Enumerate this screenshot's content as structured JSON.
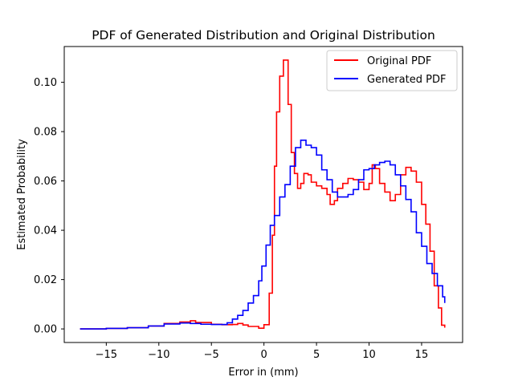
{
  "chart_data": {
    "type": "line",
    "title": "PDF of Generated Distribution and Original Distribution",
    "xlabel": "Error in (mm)",
    "ylabel": "Estimated Probability",
    "xlim": [
      -19.0,
      18.9
    ],
    "ylim": [
      -0.0055,
      0.1145
    ],
    "xticks": [
      -15,
      -10,
      -5,
      0,
      5,
      10,
      15
    ],
    "xtick_labels": [
      "−15",
      "−10",
      "−5",
      "0",
      "5",
      "10",
      "15"
    ],
    "yticks": [
      0.0,
      0.02,
      0.04,
      0.06,
      0.08,
      0.1
    ],
    "ytick_labels": [
      "0.00",
      "0.02",
      "0.04",
      "0.06",
      "0.08",
      "0.10"
    ],
    "grid": false,
    "legend_position": "top-right",
    "drawstyle": "steps",
    "series": [
      {
        "name": "Original PDF",
        "color": "#ff0000",
        "points": [
          [
            -17.5,
            0.0
          ],
          [
            -15.0,
            0.0002
          ],
          [
            -13.0,
            0.0005
          ],
          [
            -11.0,
            0.0012
          ],
          [
            -9.5,
            0.0022
          ],
          [
            -8.0,
            0.0028
          ],
          [
            -7.0,
            0.0033
          ],
          [
            -6.5,
            0.0026
          ],
          [
            -5.0,
            0.0019
          ],
          [
            -4.0,
            0.0017
          ],
          [
            -3.0,
            0.0018
          ],
          [
            -2.5,
            0.0022
          ],
          [
            -2.0,
            0.0016
          ],
          [
            -1.5,
            0.001
          ],
          [
            -0.5,
            0.0003
          ],
          [
            0.0,
            0.0017
          ],
          [
            0.5,
            0.0145
          ],
          [
            0.8,
            0.038
          ],
          [
            1.0,
            0.066
          ],
          [
            1.2,
            0.088
          ],
          [
            1.5,
            0.1025
          ],
          [
            1.85,
            0.109
          ],
          [
            2.3,
            0.091
          ],
          [
            2.6,
            0.0715
          ],
          [
            2.9,
            0.063
          ],
          [
            3.2,
            0.057
          ],
          [
            3.5,
            0.059
          ],
          [
            3.8,
            0.063
          ],
          [
            4.2,
            0.0625
          ],
          [
            4.5,
            0.0595
          ],
          [
            5.0,
            0.058
          ],
          [
            5.5,
            0.057
          ],
          [
            6.0,
            0.0545
          ],
          [
            6.3,
            0.0505
          ],
          [
            6.7,
            0.052
          ],
          [
            7.0,
            0.057
          ],
          [
            7.5,
            0.059
          ],
          [
            8.0,
            0.061
          ],
          [
            8.5,
            0.0605
          ],
          [
            9.0,
            0.0595
          ],
          [
            9.5,
            0.0565
          ],
          [
            10.0,
            0.059
          ],
          [
            10.3,
            0.0665
          ],
          [
            10.6,
            0.065
          ],
          [
            11.0,
            0.059
          ],
          [
            11.5,
            0.0555
          ],
          [
            12.0,
            0.052
          ],
          [
            12.5,
            0.0545
          ],
          [
            13.0,
            0.0625
          ],
          [
            13.5,
            0.0655
          ],
          [
            14.0,
            0.064
          ],
          [
            14.5,
            0.0595
          ],
          [
            15.0,
            0.0505
          ],
          [
            15.4,
            0.0425
          ],
          [
            15.8,
            0.0315
          ],
          [
            16.2,
            0.0175
          ],
          [
            16.6,
            0.0085
          ],
          [
            16.9,
            0.0015
          ],
          [
            17.2,
            0.0005
          ]
        ]
      },
      {
        "name": "Generated PDF",
        "color": "#0000ff",
        "points": [
          [
            -17.5,
            0.0
          ],
          [
            -15.0,
            0.0002
          ],
          [
            -13.0,
            0.0005
          ],
          [
            -11.0,
            0.0012
          ],
          [
            -9.5,
            0.002
          ],
          [
            -8.0,
            0.0024
          ],
          [
            -7.0,
            0.0022
          ],
          [
            -6.0,
            0.0019
          ],
          [
            -5.0,
            0.0018
          ],
          [
            -4.0,
            0.0018
          ],
          [
            -3.5,
            0.0025
          ],
          [
            -3.0,
            0.004
          ],
          [
            -2.5,
            0.0055
          ],
          [
            -2.0,
            0.0075
          ],
          [
            -1.5,
            0.0105
          ],
          [
            -1.0,
            0.0135
          ],
          [
            -0.5,
            0.0195
          ],
          [
            -0.2,
            0.0255
          ],
          [
            0.2,
            0.034
          ],
          [
            0.6,
            0.042
          ],
          [
            1.0,
            0.046
          ],
          [
            1.5,
            0.0535
          ],
          [
            2.0,
            0.0585
          ],
          [
            2.5,
            0.066
          ],
          [
            3.0,
            0.0735
          ],
          [
            3.5,
            0.0765
          ],
          [
            4.0,
            0.0745
          ],
          [
            4.5,
            0.0735
          ],
          [
            5.0,
            0.0705
          ],
          [
            5.5,
            0.0645
          ],
          [
            6.0,
            0.0605
          ],
          [
            6.5,
            0.0555
          ],
          [
            7.0,
            0.0535
          ],
          [
            7.5,
            0.0535
          ],
          [
            8.0,
            0.0545
          ],
          [
            8.5,
            0.0565
          ],
          [
            9.0,
            0.0605
          ],
          [
            9.5,
            0.0645
          ],
          [
            10.0,
            0.065
          ],
          [
            10.5,
            0.0665
          ],
          [
            11.0,
            0.0675
          ],
          [
            11.5,
            0.068
          ],
          [
            12.0,
            0.0665
          ],
          [
            12.5,
            0.0625
          ],
          [
            13.0,
            0.058
          ],
          [
            13.5,
            0.0525
          ],
          [
            14.0,
            0.0475
          ],
          [
            14.5,
            0.039
          ],
          [
            15.0,
            0.0335
          ],
          [
            15.5,
            0.0265
          ],
          [
            16.0,
            0.0225
          ],
          [
            16.5,
            0.0175
          ],
          [
            17.0,
            0.013
          ],
          [
            17.2,
            0.0105
          ]
        ]
      }
    ]
  }
}
